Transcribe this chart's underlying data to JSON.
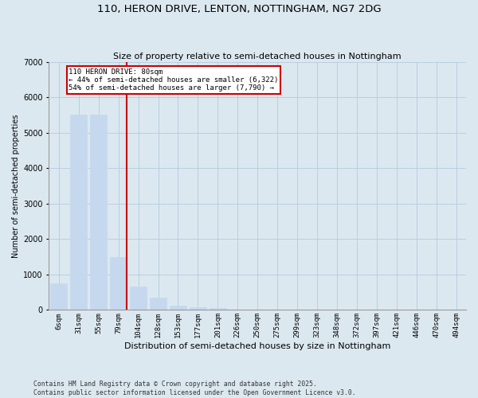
{
  "title1": "110, HERON DRIVE, LENTON, NOTTINGHAM, NG7 2DG",
  "title2": "Size of property relative to semi-detached houses in Nottingham",
  "xlabel": "Distribution of semi-detached houses by size in Nottingham",
  "ylabel": "Number of semi-detached properties",
  "categories": [
    "6sqm",
    "31sqm",
    "55sqm",
    "79sqm",
    "104sqm",
    "128sqm",
    "153sqm",
    "177sqm",
    "201sqm",
    "226sqm",
    "250sqm",
    "275sqm",
    "299sqm",
    "323sqm",
    "348sqm",
    "372sqm",
    "397sqm",
    "421sqm",
    "446sqm",
    "470sqm",
    "494sqm"
  ],
  "values": [
    750,
    5500,
    5500,
    1500,
    650,
    350,
    130,
    80,
    50,
    0,
    0,
    0,
    0,
    0,
    0,
    0,
    0,
    0,
    0,
    0,
    0
  ],
  "bar_color": "#c5d8ee",
  "bar_edge_color": "#c5d8ee",
  "grid_color": "#b8cfe0",
  "bg_color": "#dce8f0",
  "vline_x_index": 3,
  "vline_color": "#cc0000",
  "annotation_title": "110 HERON DRIVE: 80sqm",
  "annotation_line1": "← 44% of semi-detached houses are smaller (6,322)",
  "annotation_line2": "54% of semi-detached houses are larger (7,790) →",
  "annotation_box_color": "#ffffff",
  "annotation_box_edge": "#cc0000",
  "footer1": "Contains HM Land Registry data © Crown copyright and database right 2025.",
  "footer2": "Contains public sector information licensed under the Open Government Licence v3.0.",
  "ylim": [
    0,
    7000
  ],
  "yticks": [
    0,
    1000,
    2000,
    3000,
    4000,
    5000,
    6000,
    7000
  ]
}
